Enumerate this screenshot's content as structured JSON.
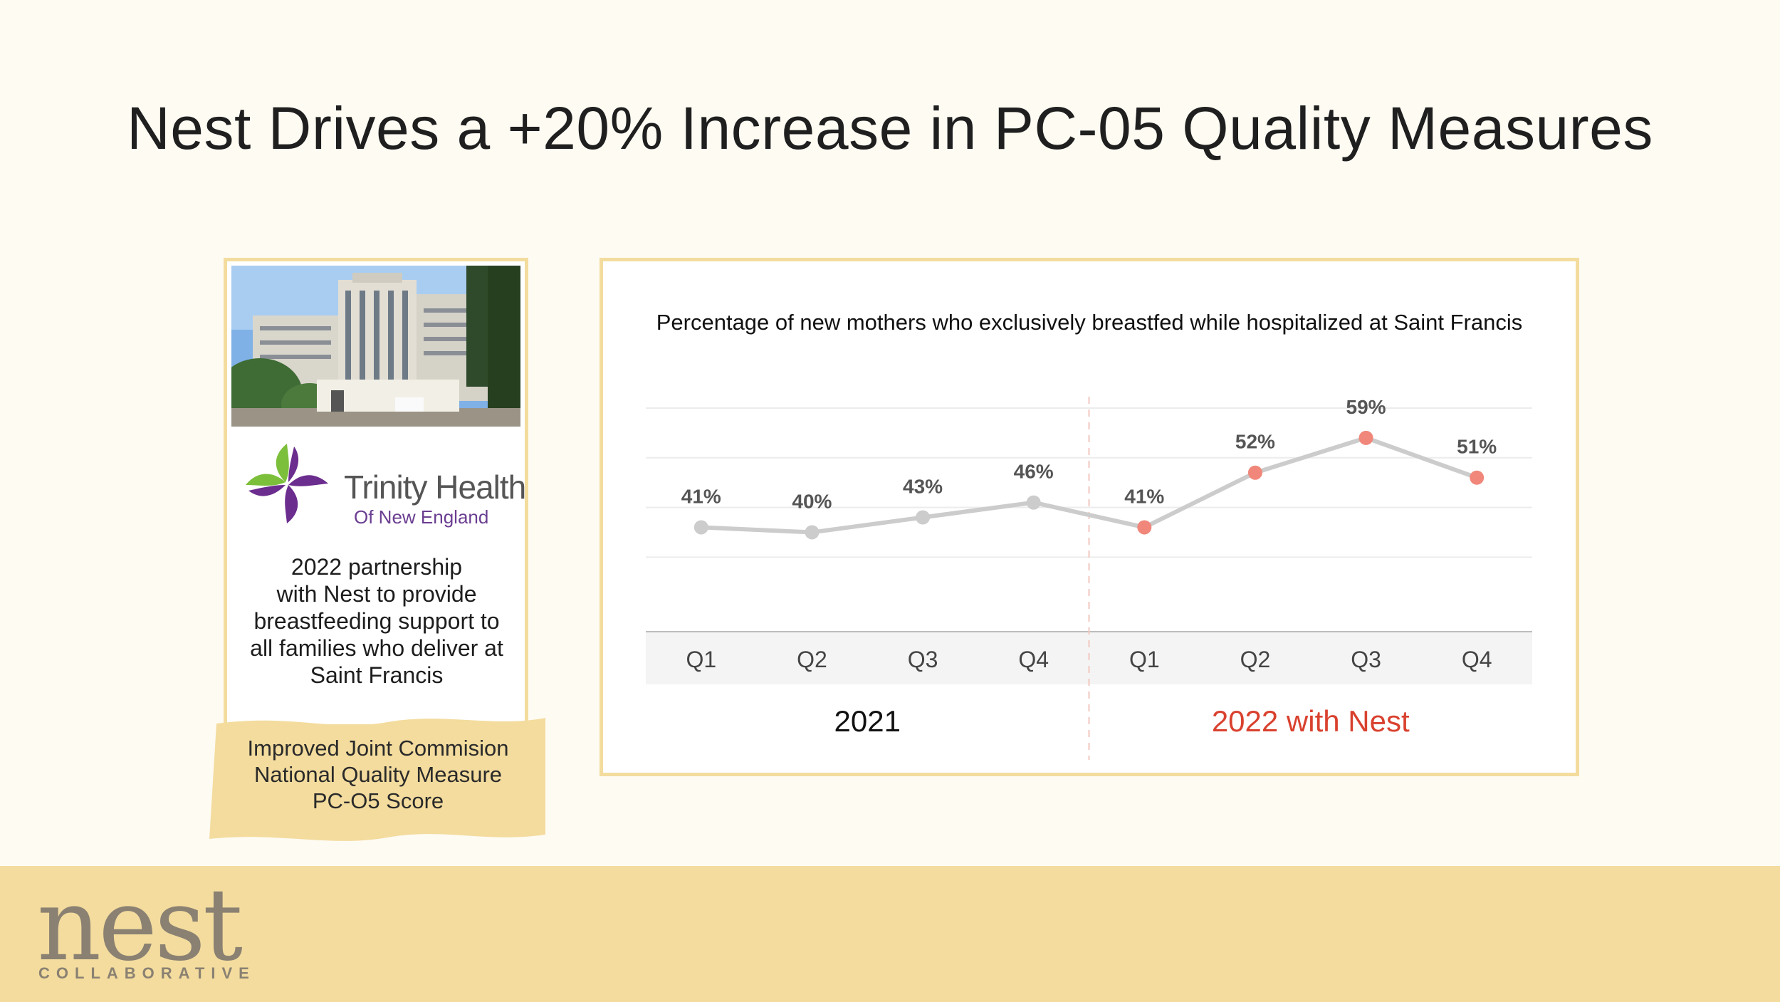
{
  "slide": {
    "title": "Nest Drives a +20% Increase in PC-05 Quality Measures"
  },
  "card": {
    "logo_name": "Trinity Health",
    "logo_sub": "Of New England",
    "partnership_lines": [
      "2022 partnership",
      "with Nest to provide",
      "breastfeeding support to",
      "all families who deliver at",
      "Saint Francis"
    ],
    "banner_lines": [
      "Improved Joint Commision",
      "National Quality Measure",
      "PC-O5 Score"
    ]
  },
  "colors": {
    "accent": "#f3dc9e",
    "line": "#cccccc",
    "point_2021": "#cccccc",
    "point_2022": "#f0877a",
    "year_2022": "#d9412e"
  },
  "chart_data": {
    "type": "line",
    "title": "Percentage of new mothers who exclusively breastfed while hospitalized at Saint Francis",
    "categories": [
      "Q1",
      "Q2",
      "Q3",
      "Q4",
      "Q1",
      "Q2",
      "Q3",
      "Q4"
    ],
    "values": [
      41,
      40,
      43,
      46,
      41,
      52,
      59,
      51
    ],
    "data_labels": [
      "41%",
      "40%",
      "43%",
      "46%",
      "41%",
      "52%",
      "59%",
      "51%"
    ],
    "groups": [
      {
        "name": "2021",
        "start": 0,
        "count": 4
      },
      {
        "name": "2022 with Nest",
        "start": 4,
        "count": 4
      }
    ],
    "ylim": [
      20,
      65
    ],
    "grid": true,
    "xlabel": "",
    "ylabel": ""
  },
  "footer": {
    "brand": "nest",
    "brand_sub": "COLLABORATIVE"
  }
}
